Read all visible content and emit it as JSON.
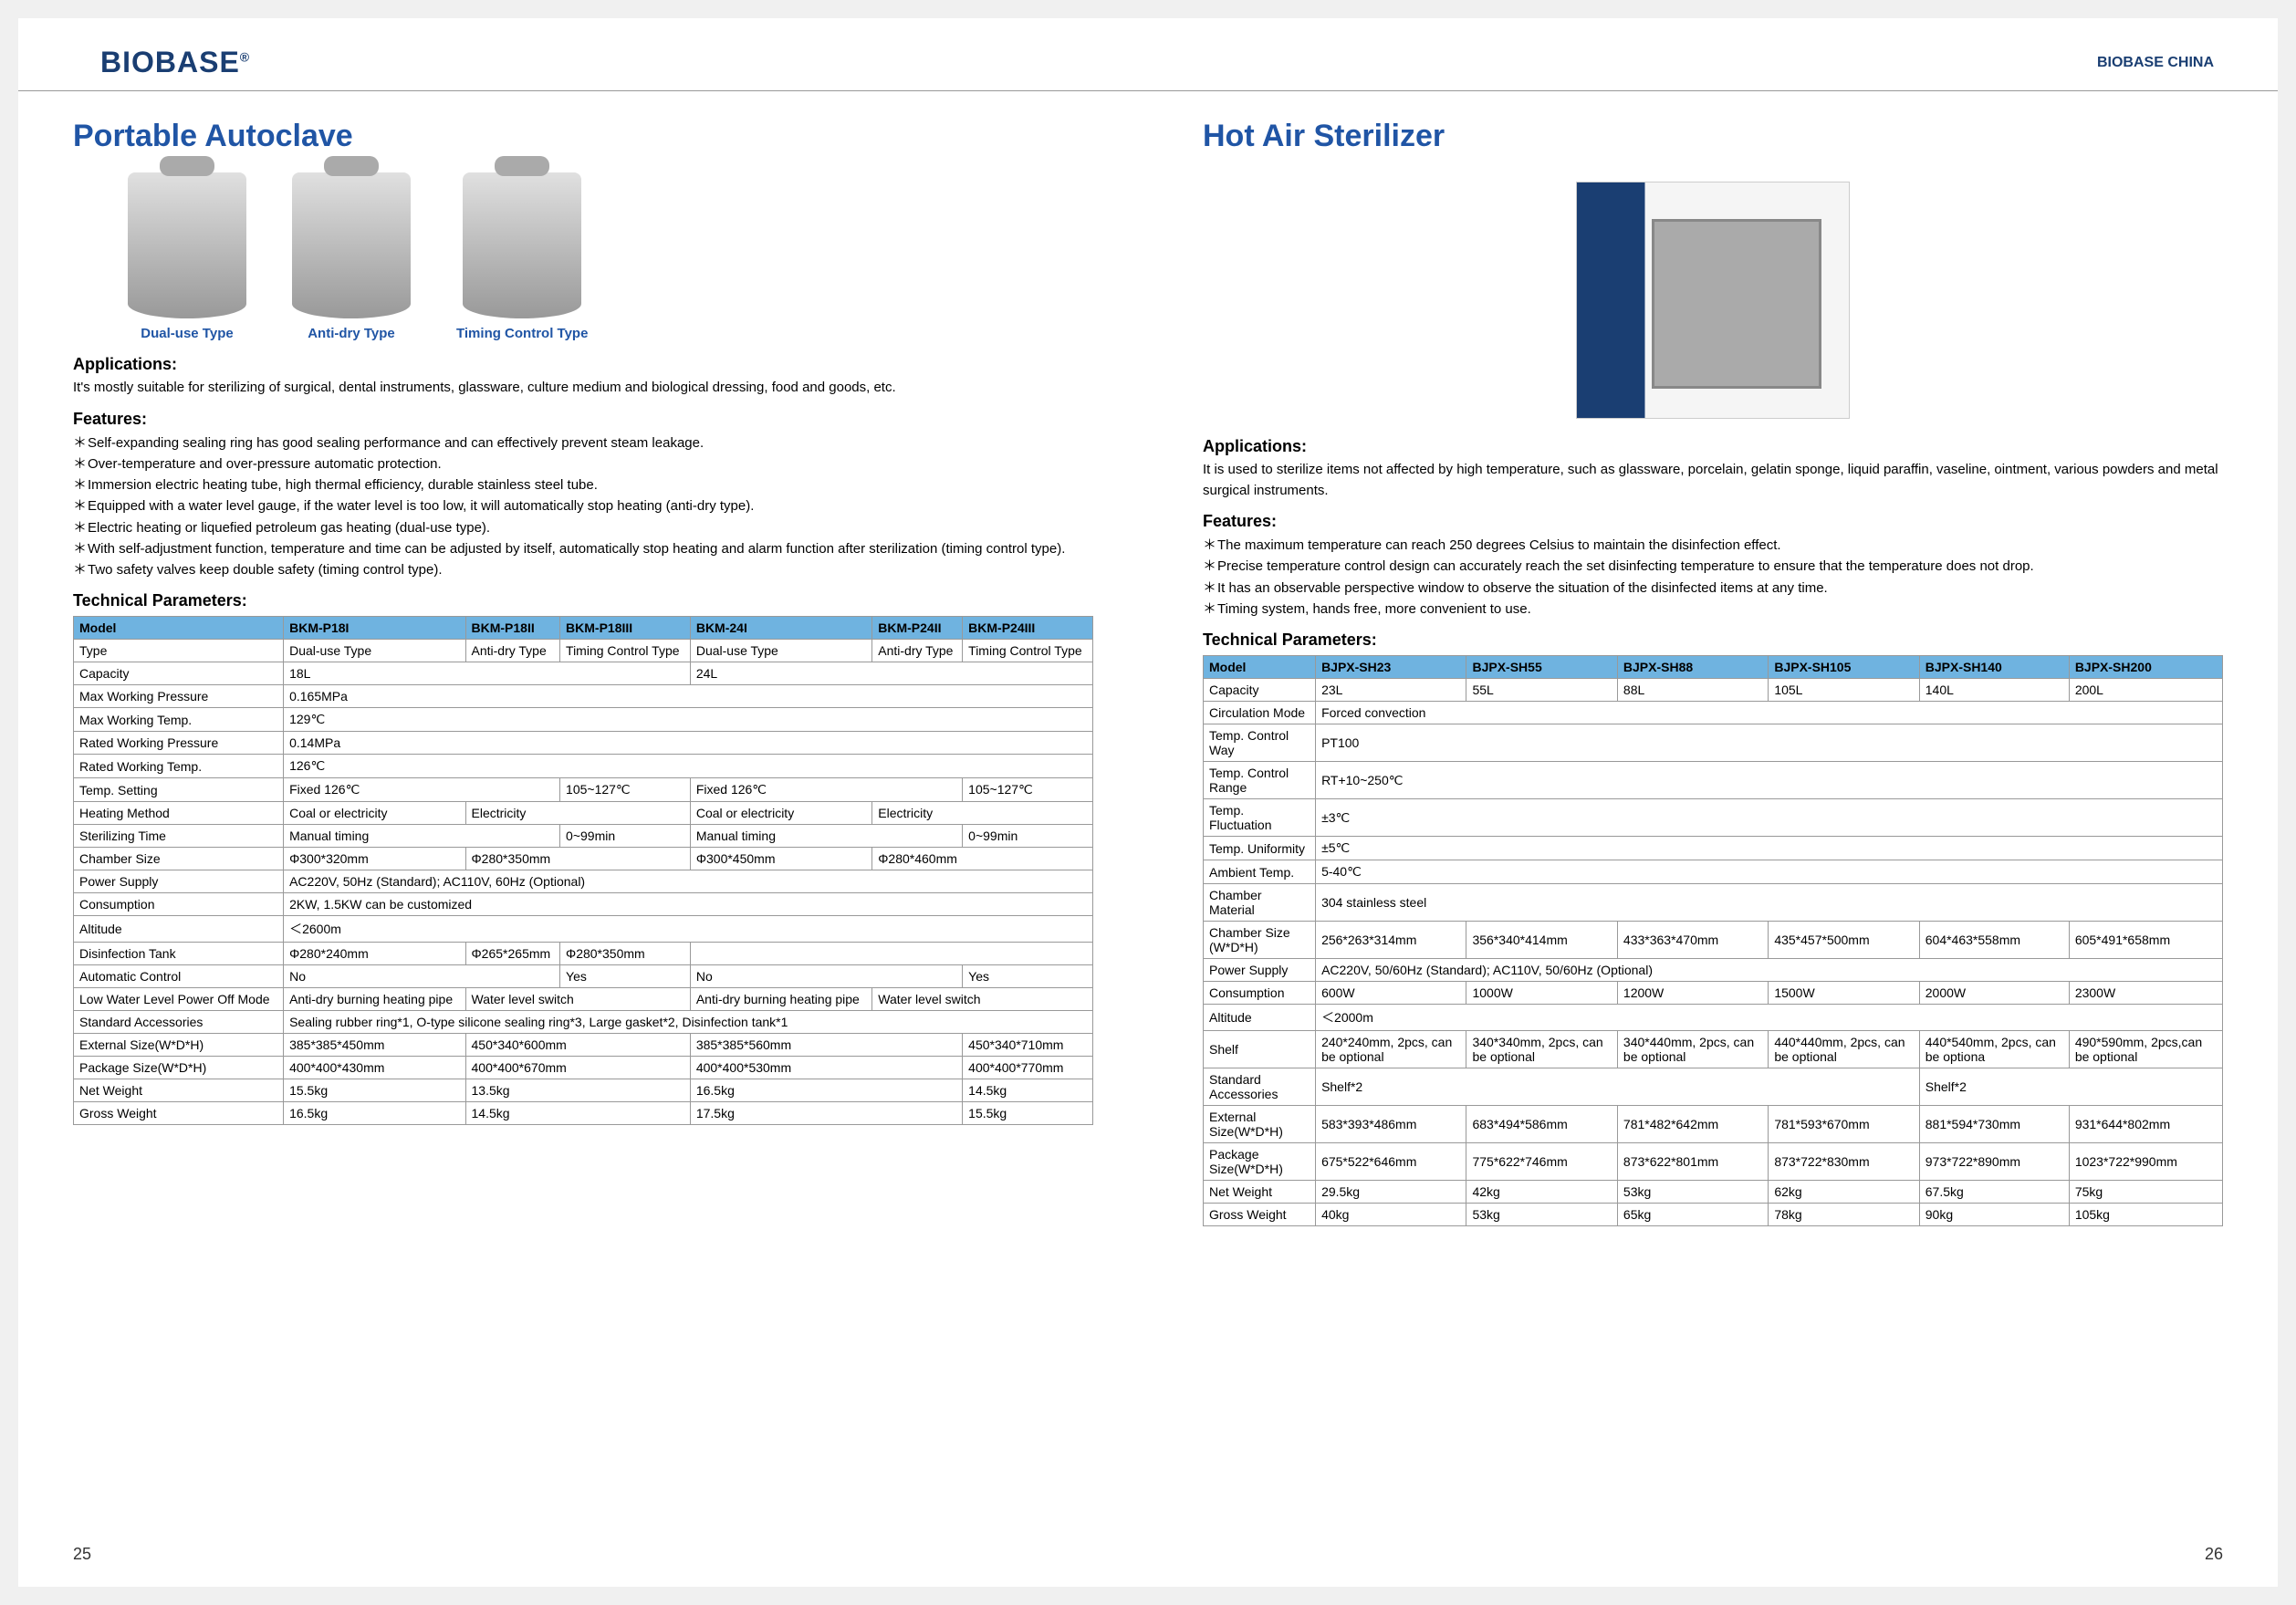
{
  "brand": "BIOBASE",
  "brand_suffix": "CHINA",
  "left": {
    "title": "Portable Autoclave",
    "products": [
      {
        "label": "Dual-use Type"
      },
      {
        "label": "Anti-dry Type"
      },
      {
        "label": "Timing Control Type"
      }
    ],
    "applications_h": "Applications:",
    "applications": "It's mostly suitable for sterilizing of surgical, dental instruments, glassware, culture medium and biological dressing, food and goods, etc.",
    "features_h": "Features:",
    "features": [
      "Self-expanding sealing ring has good sealing performance and can effectively prevent steam leakage.",
      "Over-temperature and over-pressure automatic protection.",
      "Immersion electric heating tube, high thermal efficiency, durable stainless steel tube.",
      "Equipped with a water level gauge, if the water level is too low, it will automatically stop heating (anti-dry type).",
      "Electric heating or liquefied petroleum gas heating (dual-use type).",
      "With self-adjustment function, temperature and time can be adjusted by itself, automatically stop heating and alarm function after sterilization (timing control type).",
      "Two safety valves keep double safety (timing control type)."
    ],
    "tech_h": "Technical Parameters:",
    "table": {
      "headers": [
        "Model",
        "BKM-P18I",
        "BKM-P18II",
        "BKM-P18III",
        "BKM-24I",
        "BKM-P24II",
        "BKM-P24III"
      ],
      "rows": [
        {
          "label": "Type",
          "cells": [
            "Dual-use Type",
            "Anti-dry Type",
            "Timing Control Type",
            "Dual-use Type",
            "Anti-dry Type",
            "Timing Control Type"
          ]
        },
        {
          "label": "Capacity",
          "span": [
            {
              "t": "18L",
              "c": 3
            },
            {
              "t": "24L",
              "c": 3
            }
          ]
        },
        {
          "label": "Max Working Pressure",
          "full": "0.165MPa"
        },
        {
          "label": "Max Working Temp.",
          "full": "129℃"
        },
        {
          "label": "Rated Working Pressure",
          "full": "0.14MPa"
        },
        {
          "label": "Rated Working Temp.",
          "full": "126℃"
        },
        {
          "label": "Temp. Setting",
          "span": [
            {
              "t": "Fixed 126℃",
              "c": 2
            },
            {
              "t": "105~127℃",
              "c": 1
            },
            {
              "t": "Fixed 126℃",
              "c": 2
            },
            {
              "t": "105~127℃",
              "c": 1
            }
          ]
        },
        {
          "label": "Heating Method",
          "span": [
            {
              "t": "Coal or electricity",
              "c": 1
            },
            {
              "t": "Electricity",
              "c": 2
            },
            {
              "t": "Coal or electricity",
              "c": 1
            },
            {
              "t": "Electricity",
              "c": 2
            }
          ]
        },
        {
          "label": "Sterilizing Time",
          "span": [
            {
              "t": "Manual timing",
              "c": 2
            },
            {
              "t": "0~99min",
              "c": 1
            },
            {
              "t": "Manual timing",
              "c": 2
            },
            {
              "t": "0~99min",
              "c": 1
            }
          ]
        },
        {
          "label": "Chamber Size",
          "span": [
            {
              "t": "Φ300*320mm",
              "c": 1
            },
            {
              "t": "Φ280*350mm",
              "c": 2
            },
            {
              "t": "Φ300*450mm",
              "c": 1
            },
            {
              "t": "Φ280*460mm",
              "c": 2
            }
          ]
        },
        {
          "label": "Power Supply",
          "full": "AC220V, 50Hz (Standard); AC110V, 60Hz (Optional)"
        },
        {
          "label": "Consumption",
          "full": "2KW, 1.5KW can be customized"
        },
        {
          "label": "Altitude",
          "full": "＜2600m"
        },
        {
          "label": "Disinfection Tank",
          "span": [
            {
              "t": "Φ280*240mm",
              "c": 1
            },
            {
              "t": "Φ265*265mm",
              "c": 1
            },
            {
              "t": "Φ280*350mm",
              "c": 1
            },
            {
              "t": "",
              "c": 3
            }
          ]
        },
        {
          "label": "Automatic Control",
          "span": [
            {
              "t": "No",
              "c": 2
            },
            {
              "t": "Yes",
              "c": 1
            },
            {
              "t": "No",
              "c": 2
            },
            {
              "t": "Yes",
              "c": 1
            }
          ]
        },
        {
          "label": "Low Water Level Power Off Mode",
          "span": [
            {
              "t": "Anti-dry burning heating pipe",
              "c": 1
            },
            {
              "t": "Water level switch",
              "c": 2
            },
            {
              "t": "Anti-dry burning heating pipe",
              "c": 1
            },
            {
              "t": "Water level switch",
              "c": 2
            }
          ]
        },
        {
          "label": "Standard Accessories",
          "full": "Sealing rubber ring*1, O-type silicone sealing ring*3, Large gasket*2, Disinfection tank*1"
        },
        {
          "label": "External Size(W*D*H)",
          "span": [
            {
              "t": "385*385*450mm",
              "c": 1
            },
            {
              "t": "450*340*600mm",
              "c": 2
            },
            {
              "t": "385*385*560mm",
              "c": 2
            },
            {
              "t": "450*340*710mm",
              "c": 1
            }
          ]
        },
        {
          "label": "Package Size(W*D*H)",
          "span": [
            {
              "t": "400*400*430mm",
              "c": 1
            },
            {
              "t": "400*400*670mm",
              "c": 2
            },
            {
              "t": "400*400*530mm",
              "c": 2
            },
            {
              "t": "400*400*770mm",
              "c": 1
            }
          ]
        },
        {
          "label": "Net Weight",
          "span": [
            {
              "t": "15.5kg",
              "c": 1
            },
            {
              "t": "13.5kg",
              "c": 2
            },
            {
              "t": "16.5kg",
              "c": 2
            },
            {
              "t": "14.5kg",
              "c": 1
            }
          ]
        },
        {
          "label": "Gross Weight",
          "span": [
            {
              "t": "16.5kg",
              "c": 1
            },
            {
              "t": "14.5kg",
              "c": 2
            },
            {
              "t": "17.5kg",
              "c": 2
            },
            {
              "t": "15.5kg",
              "c": 1
            }
          ]
        }
      ]
    },
    "page_num": "25"
  },
  "right": {
    "title": "Hot Air Sterilizer",
    "applications_h": "Applications:",
    "applications": "It is used to sterilize items not affected by high temperature, such as glassware, porcelain, gelatin sponge, liquid paraffin, vaseline, ointment, various powders and metal surgical instruments.",
    "features_h": "Features:",
    "features": [
      "The maximum temperature can reach 250 degrees Celsius to maintain the disinfection effect.",
      "Precise temperature control design can accurately reach the set disinfecting temperature to ensure that the temperature does not drop.",
      "It has an observable perspective window to observe the situation of the disinfected items at any time.",
      "Timing system, hands free, more convenient to use."
    ],
    "tech_h": "Technical Parameters:",
    "table": {
      "headers": [
        "Model",
        "BJPX-SH23",
        "BJPX-SH55",
        "BJPX-SH88",
        "BJPX-SH105",
        "BJPX-SH140",
        "BJPX-SH200"
      ],
      "rows": [
        {
          "label": "Capacity",
          "cells": [
            "23L",
            "55L",
            "88L",
            "105L",
            "140L",
            "200L"
          ]
        },
        {
          "label": "Circulation Mode",
          "full": "Forced convection"
        },
        {
          "label": "Temp. Control Way",
          "full": "PT100"
        },
        {
          "label": "Temp. Control Range",
          "full": "RT+10~250℃"
        },
        {
          "label": "Temp. Fluctuation",
          "full": "±3℃"
        },
        {
          "label": "Temp. Uniformity",
          "full": "±5℃"
        },
        {
          "label": "Ambient Temp.",
          "full": "5-40℃"
        },
        {
          "label": "Chamber Material",
          "full": "304 stainless steel"
        },
        {
          "label": "Chamber Size (W*D*H)",
          "cells": [
            "256*263*314mm",
            "356*340*414mm",
            "433*363*470mm",
            "435*457*500mm",
            "604*463*558mm",
            "605*491*658mm"
          ]
        },
        {
          "label": "Power Supply",
          "full": "AC220V, 50/60Hz (Standard); AC110V, 50/60Hz (Optional)"
        },
        {
          "label": "Consumption",
          "cells": [
            "600W",
            "1000W",
            "1200W",
            "1500W",
            "2000W",
            "2300W"
          ]
        },
        {
          "label": "Altitude",
          "full": "＜2000m"
        },
        {
          "label": "Shelf",
          "cells": [
            "240*240mm, 2pcs, can be optional",
            "340*340mm, 2pcs, can be optional",
            "340*440mm, 2pcs, can be optional",
            "440*440mm, 2pcs, can be optional",
            "440*540mm, 2pcs, can be optiona",
            "490*590mm, 2pcs,can be optional"
          ]
        },
        {
          "label": "Standard Accessories",
          "span": [
            {
              "t": "Shelf*2",
              "c": 4
            },
            {
              "t": "Shelf*2",
              "c": 2
            }
          ]
        },
        {
          "label": "External Size(W*D*H)",
          "cells": [
            "583*393*486mm",
            "683*494*586mm",
            "781*482*642mm",
            "781*593*670mm",
            "881*594*730mm",
            "931*644*802mm"
          ]
        },
        {
          "label": "Package Size(W*D*H)",
          "cells": [
            "675*522*646mm",
            "775*622*746mm",
            "873*622*801mm",
            "873*722*830mm",
            "973*722*890mm",
            "1023*722*990mm"
          ]
        },
        {
          "label": "Net Weight",
          "cells": [
            "29.5kg",
            "42kg",
            "53kg",
            "62kg",
            "67.5kg",
            "75kg"
          ]
        },
        {
          "label": "Gross Weight",
          "cells": [
            "40kg",
            "53kg",
            "65kg",
            "78kg",
            "90kg",
            "105kg"
          ]
        }
      ]
    },
    "page_num": "26"
  },
  "colors": {
    "header_bg": "#6fb3e0",
    "title": "#2055a5",
    "border": "#999999"
  }
}
